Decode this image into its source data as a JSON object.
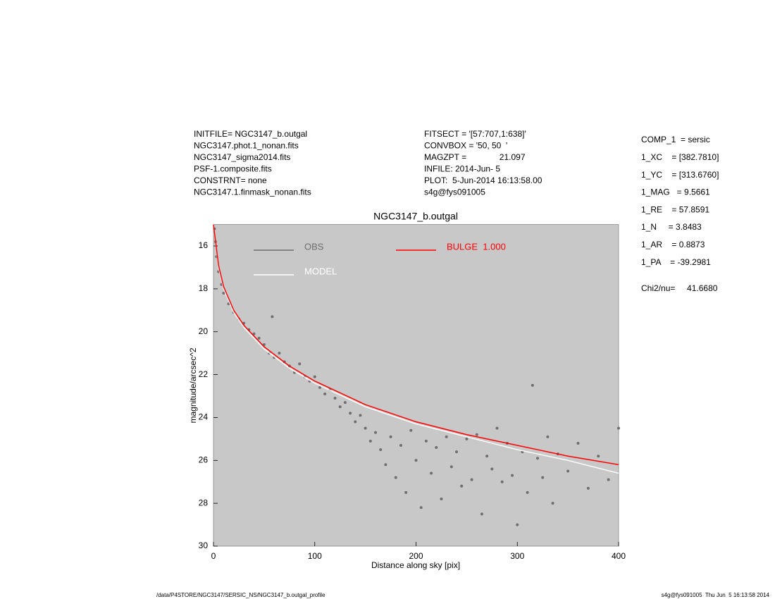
{
  "info_left": [
    "INITFILE= NGC3147_b.outgal",
    "NGC3147.phot.1_nonan.fits",
    "NGC3147_sigma2014.fits",
    "PSF-1.composite.fits",
    "CONSTRNT= none",
    "NGC3147.1.finmask_nonan.fits"
  ],
  "info_center": [
    "FITSECT = '[57:707,1:638]'",
    "CONVBOX = '50, 50  '",
    "MAGZPT =              21.097",
    "INFILE: 2014-Jun- 5",
    "PLOT:  5-Jun-2014 16:13:58.00",
    "s4g@fys091005"
  ],
  "info_right": [
    "COMP_1  = sersic",
    "1_XC    = [382.7810]",
    "1_YC    = [313.6760]",
    "1_MAG   = 9.5661",
    "1_RE    = 57.8591",
    "1_N     = 3.8483",
    "1_AR    = 0.8873",
    "1_PA    = -39.2981"
  ],
  "chi2": "Chi2/nu=     41.6680",
  "footer_left": "/data/P4STORE/NGC3147/SERSIC_NS/NGC3147_b.outgal_profile",
  "footer_right": "s4g@fys091005  Thu Jun  5 16:13:58 2014",
  "chart_data": {
    "type": "scatter",
    "title": "NGC3147_b.outgal",
    "x_label": "Distance along sky [pix]",
    "y_label": "magnitude/arcsec^2",
    "xlim": [
      0,
      400
    ],
    "xticks": [
      0,
      100,
      200,
      300,
      400
    ],
    "ylim": [
      30,
      15
    ],
    "yticks": [
      16,
      18,
      20,
      22,
      24,
      26,
      28,
      30
    ],
    "background": "#c8c8c8",
    "series": [
      {
        "name": "OBS",
        "color": "#6e6e6e",
        "style": "points",
        "x": [
          1,
          2,
          3,
          5,
          8,
          10,
          15,
          20,
          25,
          30,
          35,
          40,
          45,
          50,
          55,
          58,
          60,
          65,
          70,
          75,
          80,
          85,
          90,
          95,
          100,
          105,
          110,
          115,
          120,
          125,
          130,
          135,
          140,
          145,
          150,
          155,
          160,
          165,
          170,
          175,
          180,
          185,
          190,
          195,
          200,
          205,
          210,
          215,
          220,
          225,
          230,
          235,
          240,
          245,
          250,
          255,
          260,
          265,
          270,
          275,
          280,
          285,
          290,
          295,
          300,
          305,
          310,
          315,
          320,
          325,
          330,
          335,
          340,
          350,
          360,
          370,
          380,
          390,
          400
        ],
        "values": [
          15.2,
          15.8,
          16.5,
          17.2,
          17.8,
          18.2,
          18.7,
          19.1,
          19.4,
          19.6,
          19.9,
          20.1,
          20.3,
          20.6,
          21.0,
          19.3,
          21.2,
          21.0,
          21.4,
          21.6,
          21.9,
          21.5,
          22.1,
          22.3,
          22.1,
          22.6,
          22.9,
          22.7,
          23.1,
          23.5,
          23.3,
          23.8,
          24.2,
          23.9,
          24.5,
          25.1,
          24.7,
          25.5,
          26.2,
          24.9,
          26.8,
          25.3,
          27.5,
          24.6,
          26.0,
          28.2,
          25.1,
          26.6,
          25.4,
          27.8,
          24.9,
          26.3,
          25.6,
          27.2,
          25.0,
          26.9,
          24.8,
          28.5,
          25.8,
          26.4,
          24.5,
          27.0,
          25.2,
          26.7,
          29.0,
          25.6,
          27.5,
          22.5,
          25.9,
          26.8,
          24.9,
          28.0,
          25.7,
          26.5,
          25.2,
          27.3,
          25.8,
          26.9,
          24.5
        ]
      },
      {
        "name": "MODEL",
        "color": "#ffffff",
        "style": "line",
        "x": [
          0,
          5,
          10,
          20,
          30,
          50,
          75,
          100,
          150,
          200,
          250,
          300,
          350,
          400
        ],
        "values": [
          15.0,
          17.0,
          18.0,
          19.1,
          19.8,
          20.8,
          21.7,
          22.4,
          23.5,
          24.3,
          24.9,
          25.5,
          26.0,
          26.6
        ]
      },
      {
        "name": "BULGE  1.000",
        "color": "#ff0000",
        "style": "line",
        "x": [
          0,
          5,
          10,
          20,
          30,
          50,
          75,
          100,
          150,
          200,
          250,
          300,
          350,
          400
        ],
        "values": [
          15.0,
          16.9,
          17.9,
          19.0,
          19.7,
          20.7,
          21.6,
          22.3,
          23.4,
          24.2,
          24.8,
          25.3,
          25.8,
          26.2
        ]
      }
    ]
  }
}
